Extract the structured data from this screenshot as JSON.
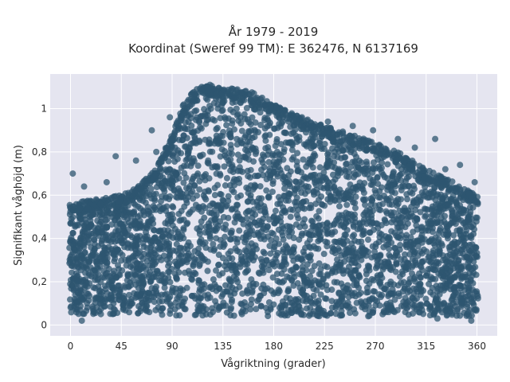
{
  "chart_data": {
    "type": "scatter",
    "title_lines": [
      "År 1979 - 2019",
      "Koordinat (Sweref 99 TM): E 362476, N 6137169"
    ],
    "xlabel": "Vågriktning (grader)",
    "ylabel": "Signifikant våghöjd (m)",
    "xlim": [
      -18,
      378
    ],
    "ylim": [
      -0.05,
      1.16
    ],
    "xticks": [
      0,
      45,
      90,
      135,
      180,
      225,
      270,
      315,
      360
    ],
    "xtick_labels": [
      "0",
      "45",
      "90",
      "135",
      "180",
      "225",
      "270",
      "315",
      "360"
    ],
    "yticks": [
      0,
      0.2,
      0.4,
      0.6,
      0.8,
      1
    ],
    "ytick_labels": [
      "0",
      "0,2",
      "0,4",
      "0,6",
      "0,8",
      "1"
    ],
    "grid": true,
    "colors": {
      "marker": "#2e5570",
      "plot_bg": "#e5e5f0",
      "grid": "#ffffff"
    },
    "envelope": [
      {
        "x": 0,
        "low": 0.05,
        "high": 0.56
      },
      {
        "x": 20,
        "low": 0.05,
        "high": 0.58
      },
      {
        "x": 45,
        "low": 0.05,
        "high": 0.6
      },
      {
        "x": 60,
        "low": 0.05,
        "high": 0.64
      },
      {
        "x": 75,
        "low": 0.05,
        "high": 0.72
      },
      {
        "x": 90,
        "low": 0.04,
        "high": 0.88
      },
      {
        "x": 100,
        "low": 0.04,
        "high": 1.02
      },
      {
        "x": 115,
        "low": 0.04,
        "high": 1.12
      },
      {
        "x": 135,
        "low": 0.04,
        "high": 1.1
      },
      {
        "x": 160,
        "low": 0.04,
        "high": 1.08
      },
      {
        "x": 180,
        "low": 0.04,
        "high": 1.02
      },
      {
        "x": 200,
        "low": 0.04,
        "high": 0.97
      },
      {
        "x": 225,
        "low": 0.04,
        "high": 0.92
      },
      {
        "x": 250,
        "low": 0.04,
        "high": 0.88
      },
      {
        "x": 270,
        "low": 0.04,
        "high": 0.84
      },
      {
        "x": 290,
        "low": 0.04,
        "high": 0.8
      },
      {
        "x": 315,
        "low": 0.04,
        "high": 0.72
      },
      {
        "x": 340,
        "low": 0.04,
        "high": 0.66
      },
      {
        "x": 360,
        "low": 0.04,
        "high": 0.6
      }
    ],
    "outliers": [
      {
        "x": 2,
        "y": 0.7
      },
      {
        "x": 12,
        "y": 0.64
      },
      {
        "x": 32,
        "y": 0.66
      },
      {
        "x": 40,
        "y": 0.78
      },
      {
        "x": 58,
        "y": 0.76
      },
      {
        "x": 72,
        "y": 0.9
      },
      {
        "x": 76,
        "y": 0.8
      },
      {
        "x": 88,
        "y": 0.96
      },
      {
        "x": 205,
        "y": 0.96
      },
      {
        "x": 228,
        "y": 0.94
      },
      {
        "x": 250,
        "y": 0.92
      },
      {
        "x": 268,
        "y": 0.9
      },
      {
        "x": 290,
        "y": 0.86
      },
      {
        "x": 305,
        "y": 0.82
      },
      {
        "x": 323,
        "y": 0.86
      },
      {
        "x": 332,
        "y": 0.72
      },
      {
        "x": 345,
        "y": 0.74
      },
      {
        "x": 358,
        "y": 0.66
      },
      {
        "x": 325,
        "y": 0.03
      },
      {
        "x": 355,
        "y": 0.02
      },
      {
        "x": 10,
        "y": 0.02
      }
    ]
  }
}
